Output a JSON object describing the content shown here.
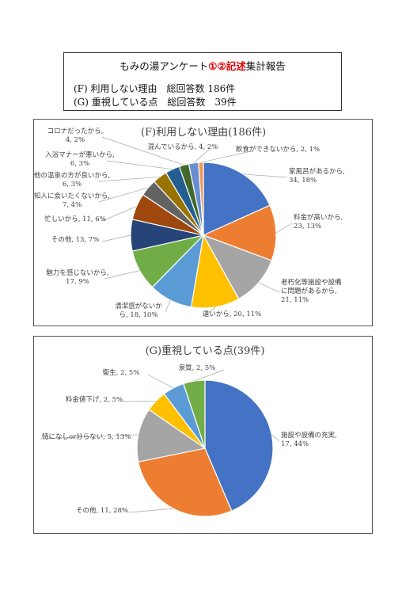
{
  "report": {
    "title_prefix": "もみの湯アンケート",
    "title_highlight": "①②記述",
    "title_suffix": "集計報告",
    "line_f": "(F) 利用しない理由　総回答数 186件",
    "line_g": "(G) 重視している点　総回答数　39件"
  },
  "chart_data": [
    {
      "type": "pie",
      "title": "(F)利用しない理由(186件)",
      "total": 186,
      "slices": [
        {
          "label": "家風呂があるから",
          "value": 34,
          "percent": "18%",
          "color": "#4472C4"
        },
        {
          "label": "料金が高いから",
          "value": 23,
          "percent": "13%",
          "color": "#ED7D31"
        },
        {
          "label": "老朽化等施設や設備に問題があるから",
          "value": 21,
          "percent": "11%",
          "color": "#A5A5A5"
        },
        {
          "label": "遠いから",
          "value": 20,
          "percent": "11%",
          "color": "#FFC000"
        },
        {
          "label": "清潔感がないから",
          "value": 18,
          "percent": "10%",
          "color": "#5B9BD5"
        },
        {
          "label": "魅力を感じないから",
          "value": 17,
          "percent": "9%",
          "color": "#70AD47"
        },
        {
          "label": "その他",
          "value": 13,
          "percent": "7%",
          "color": "#264478"
        },
        {
          "label": "忙しいから",
          "value": 11,
          "percent": "6%",
          "color": "#9E480E"
        },
        {
          "label": "知人に会いたくないから",
          "value": 7,
          "percent": "4%",
          "color": "#636363"
        },
        {
          "label": "他の温泉の方が良いから",
          "value": 6,
          "percent": "3%",
          "color": "#997300"
        },
        {
          "label": "入浴マナーが悪いから",
          "value": 6,
          "percent": "3%",
          "color": "#255E91"
        },
        {
          "label": "コロナだったから",
          "value": 4,
          "percent": "2%",
          "color": "#43682B"
        },
        {
          "label": "混んでいるから",
          "value": 4,
          "percent": "2%",
          "color": "#698ED0"
        },
        {
          "label": "飲食ができないから",
          "value": 2,
          "percent": "1%",
          "color": "#F1975A"
        }
      ]
    },
    {
      "type": "pie",
      "title": "(G)重視している点(39件)",
      "total": 39,
      "slices": [
        {
          "label": "施設や設備の充実",
          "value": 17,
          "percent": "44%",
          "color": "#4472C4"
        },
        {
          "label": "その他",
          "value": 11,
          "percent": "28%",
          "color": "#ED7D31"
        },
        {
          "label": "特になしor分らない",
          "value": 5,
          "percent": "13%",
          "color": "#A5A5A5"
        },
        {
          "label": "料金値下げ",
          "value": 2,
          "percent": "5%",
          "color": "#FFC000"
        },
        {
          "label": "衛生",
          "value": 2,
          "percent": "5%",
          "color": "#5B9BD5"
        },
        {
          "label": "泉質",
          "value": 2,
          "percent": "5%",
          "color": "#70AD47"
        }
      ]
    }
  ]
}
